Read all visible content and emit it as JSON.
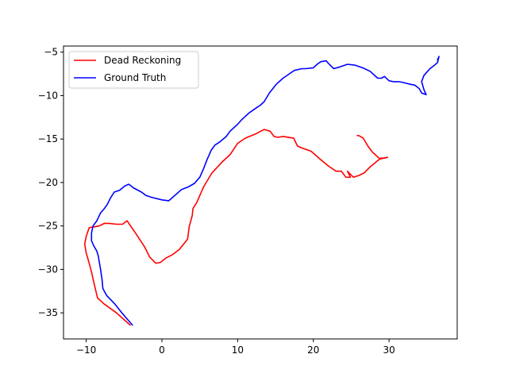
{
  "chart_data": {
    "type": "line",
    "title": "",
    "xlabel": "",
    "ylabel": "",
    "xlim": [
      -13,
      39
    ],
    "ylim": [
      -38,
      -4.3
    ],
    "xticks": [
      -10,
      0,
      10,
      20,
      30
    ],
    "yticks": [
      -35,
      -30,
      -25,
      -20,
      -15,
      -10,
      -5
    ],
    "xtick_labels": [
      "−10",
      "0",
      "10",
      "20",
      "30"
    ],
    "ytick_labels": [
      "−35",
      "−30",
      "−25",
      "−20",
      "−15",
      "−10",
      "−5"
    ],
    "grid": false,
    "legend_position": "top-left",
    "series": [
      {
        "name": "Dead Reckoning",
        "color": "#ff0000",
        "x": [
          -4.2,
          -6.0,
          -7.6,
          -8.5,
          -9.0,
          -9.3,
          -9.7,
          -10.0,
          -10.2,
          -10.0,
          -9.6,
          -8.3,
          -7.6,
          -7.0,
          -6.0,
          -5.2,
          -4.6,
          -4.3,
          -3.5,
          -2.3,
          -1.6,
          -0.8,
          -0.2,
          0.5,
          1.4,
          2.3,
          3.4,
          3.6,
          4.0,
          4.1,
          4.6,
          5.5,
          6.6,
          8.0,
          9.0,
          10.0,
          11.0,
          12.4,
          13.5,
          14.3,
          14.8,
          15.3,
          16.0,
          17.4,
          17.9,
          18.4,
          19.7,
          21.0,
          22.0,
          23.0,
          23.7,
          24.3,
          24.9,
          24.5,
          25.3,
          26.0,
          26.7,
          27.5,
          28.2,
          28.9,
          29.4,
          29.8,
          28.8,
          27.8,
          27.2,
          26.6,
          26.0,
          25.8
        ],
        "y": [
          -36.4,
          -35.0,
          -34.0,
          -33.3,
          -31.5,
          -30.3,
          -29.0,
          -28.1,
          -27.1,
          -26.2,
          -25.2,
          -25.0,
          -24.7,
          -24.7,
          -24.8,
          -24.8,
          -24.4,
          -24.8,
          -25.8,
          -27.4,
          -28.6,
          -29.3,
          -29.2,
          -28.7,
          -28.3,
          -27.7,
          -26.5,
          -25.1,
          -23.8,
          -23.0,
          -22.3,
          -20.5,
          -18.9,
          -17.6,
          -16.8,
          -15.5,
          -14.9,
          -14.4,
          -13.9,
          -14.1,
          -14.7,
          -14.8,
          -14.7,
          -14.9,
          -15.8,
          -16.0,
          -16.4,
          -17.4,
          -18.1,
          -18.7,
          -18.7,
          -19.4,
          -19.4,
          -18.7,
          -19.4,
          -19.2,
          -18.9,
          -18.2,
          -17.7,
          -17.2,
          -17.2,
          -17.1,
          -17.3,
          -16.5,
          -15.8,
          -14.9,
          -14.6,
          -14.6
        ]
      },
      {
        "name": "Ground Truth",
        "color": "#0000ff",
        "x": [
          -3.9,
          -4.4,
          -5.2,
          -6.2,
          -7.3,
          -7.8,
          -7.9,
          -8.1,
          -8.4,
          -8.6,
          -9.0,
          -9.3,
          -9.3,
          -9.1,
          -8.6,
          -8.1,
          -7.7,
          -7.2,
          -6.8,
          -6.3,
          -5.6,
          -4.9,
          -4.4,
          -4.2,
          -3.8,
          -2.7,
          -2.1,
          -1.4,
          0.0,
          0.9,
          1.3,
          2.6,
          3.5,
          4.3,
          5.0,
          5.5,
          6.0,
          6.5,
          7.0,
          7.7,
          8.5,
          9.0,
          10.0,
          10.5,
          11.5,
          12.5,
          13.0,
          13.5,
          14.2,
          15.1,
          16.0,
          17.0,
          17.5,
          18.5,
          19.0,
          20.0,
          20.5,
          21.0,
          21.7,
          22.0,
          22.7,
          23.5,
          24.5,
          25.5,
          26.5,
          27.5,
          28.5,
          29.0,
          29.4,
          30.0,
          30.6,
          31.3,
          31.9,
          32.8,
          33.4,
          34.0,
          34.3,
          34.9,
          34.6,
          34.3,
          34.6,
          35.0,
          35.4,
          36.0,
          36.4,
          36.6,
          36.4
        ],
        "y": [
          -36.4,
          -35.9,
          -35.1,
          -34.0,
          -33.0,
          -32.2,
          -31.2,
          -30.0,
          -28.5,
          -27.9,
          -27.3,
          -26.7,
          -25.8,
          -25.0,
          -24.4,
          -23.5,
          -23.1,
          -22.5,
          -21.8,
          -21.1,
          -20.9,
          -20.4,
          -20.2,
          -20.3,
          -20.6,
          -21.1,
          -21.5,
          -21.7,
          -22.0,
          -22.1,
          -21.8,
          -20.8,
          -20.5,
          -20.1,
          -19.4,
          -18.4,
          -17.3,
          -16.3,
          -15.7,
          -15.3,
          -14.7,
          -14.1,
          -13.3,
          -12.8,
          -12.0,
          -11.4,
          -11.1,
          -10.7,
          -9.7,
          -8.7,
          -8.0,
          -7.4,
          -7.1,
          -6.9,
          -6.9,
          -6.8,
          -6.4,
          -6.1,
          -6.0,
          -6.3,
          -6.9,
          -6.7,
          -6.4,
          -6.5,
          -6.8,
          -7.2,
          -8.0,
          -8.0,
          -7.8,
          -8.3,
          -8.4,
          -8.4,
          -8.5,
          -8.7,
          -8.8,
          -9.2,
          -9.7,
          -9.9,
          -9.3,
          -8.4,
          -7.7,
          -7.3,
          -6.9,
          -6.5,
          -6.2,
          -5.5,
          -5.9
        ]
      }
    ]
  }
}
